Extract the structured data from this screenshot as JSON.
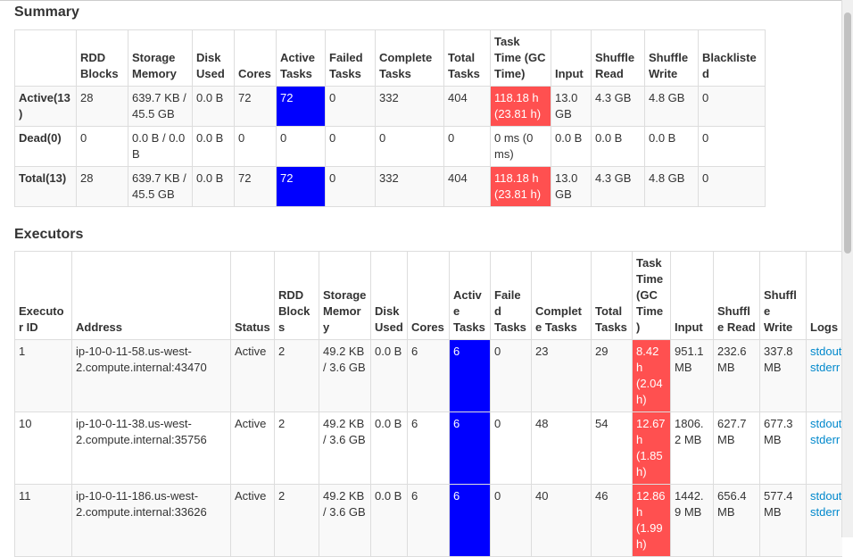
{
  "summary": {
    "title": "Summary",
    "headers": [
      "RDD Blocks",
      "Storage Memory",
      "Disk Used",
      "Cores",
      "Active Tasks",
      "Failed Tasks",
      "Complete Tasks",
      "Total Tasks",
      "Task Time (GC Time)",
      "Input",
      "Shuffle Read",
      "Shuffle Write",
      "Blacklisted"
    ],
    "rows": [
      [
        "Active(13)",
        "28",
        "639.7 KB / 45.5 GB",
        "0.0 B",
        "72",
        "72",
        "0",
        "332",
        "404",
        "118.18 h (23.81 h)",
        "13.0 GB",
        "4.3 GB",
        "4.8 GB",
        "0"
      ],
      [
        "Dead(0)",
        "0",
        "0.0 B / 0.0 B",
        "0.0 B",
        "0",
        "0",
        "0",
        "0",
        "0",
        "0 ms (0 ms)",
        "0.0 B",
        "0.0 B",
        "0.0 B",
        "0"
      ],
      [
        "Total(13)",
        "28",
        "639.7 KB / 45.5 GB",
        "0.0 B",
        "72",
        "72",
        "0",
        "332",
        "404",
        "118.18 h (23.81 h)",
        "13.0 GB",
        "4.3 GB",
        "4.8 GB",
        "0"
      ]
    ]
  },
  "executors": {
    "title": "Executors",
    "headers": [
      "Executor ID",
      "Address",
      "Status",
      "RDD Blocks",
      "Storage Memory",
      "Disk Used",
      "Cores",
      "Active Tasks",
      "Failed Tasks",
      "Complete Tasks",
      "Total Tasks",
      "Task Time (GC Time)",
      "Input",
      "Shuffle Read",
      "Shuffle Write",
      "Logs"
    ],
    "rows": [
      [
        "1",
        "ip-10-0-11-58.us-west-2.compute.internal:43470",
        "Active",
        "2",
        "49.2 KB / 3.6 GB",
        "0.0 B",
        "6",
        "6",
        "0",
        "23",
        "29",
        "8.42 h (2.04 h)",
        "951.1 MB",
        "232.6 MB",
        "337.8 MB",
        [
          "stdout",
          "stderr"
        ]
      ],
      [
        "10",
        "ip-10-0-11-38.us-west-2.compute.internal:35756",
        "Active",
        "2",
        "49.2 KB / 3.6 GB",
        "0.0 B",
        "6",
        "6",
        "0",
        "48",
        "54",
        "12.67 h (1.85 h)",
        "1806.2 MB",
        "627.7 MB",
        "677.3 MB",
        [
          "stdout",
          "stderr"
        ]
      ],
      [
        "11",
        "ip-10-0-11-186.us-west-2.compute.internal:33626",
        "Active",
        "2",
        "49.2 KB / 3.6 GB",
        "0.0 B",
        "6",
        "6",
        "0",
        "40",
        "46",
        "12.86 h (1.99 h)",
        "1442.9 MB",
        "656.4 MB",
        "577.4 MB",
        [
          "stdout",
          "stderr"
        ]
      ]
    ]
  }
}
